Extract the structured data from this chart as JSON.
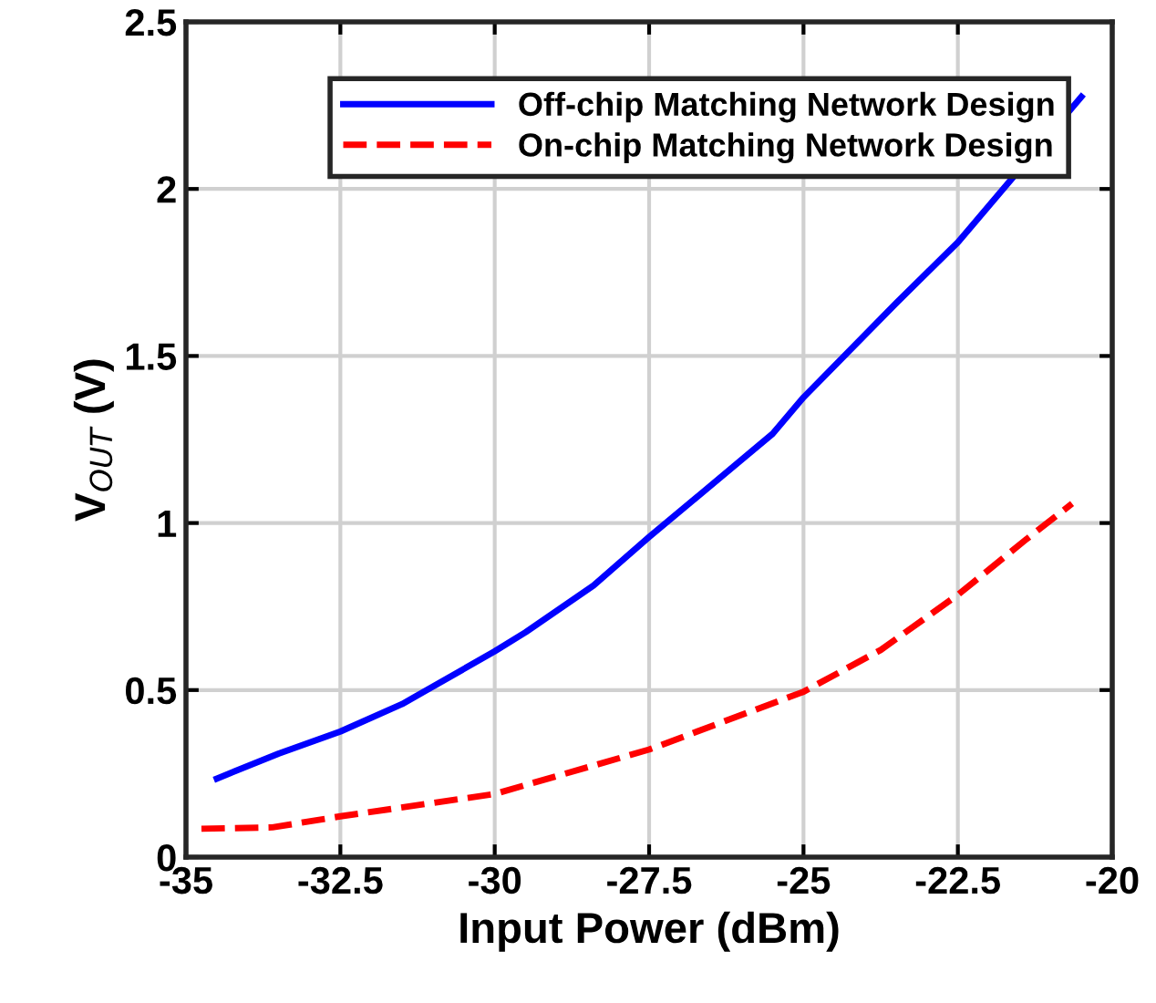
{
  "chart_data": {
    "type": "line",
    "xlabel": "Input Power (dBm)",
    "ylabel": "V$_{OUT}$ (V)",
    "xlim": [
      -35,
      -20
    ],
    "xticks": [
      -35,
      -32.5,
      -30,
      -27.5,
      -25,
      -22.5,
      -20
    ],
    "ylim": [
      0,
      2.5
    ],
    "yticks": [
      0,
      0.5,
      1,
      1.5,
      2,
      2.5
    ],
    "grid": true,
    "legend": "top right",
    "series": [
      {
        "name": "Off-chip Matching Network Design",
        "color": "#0000ff",
        "line_style": "solid",
        "x": [
          -34.5,
          -33.5,
          -32.5,
          -31.5,
          -30,
          -29.5,
          -28.4,
          -27.5,
          -25.5,
          -25,
          -23.5,
          -22.5,
          -20.5
        ],
        "values": [
          0.235,
          0.31,
          0.376,
          0.458,
          0.616,
          0.673,
          0.813,
          0.958,
          1.267,
          1.376,
          1.658,
          1.84,
          2.276
        ]
      },
      {
        "name": "On-chip Matching Network Design",
        "color": "#ff0000",
        "line_style": "dashed",
        "x": [
          -34.75,
          -33.6,
          -32.5,
          -30,
          -27.5,
          -25,
          -23.75,
          -22.5,
          -21.4,
          -20.65
        ],
        "values": [
          0.085,
          0.089,
          0.122,
          0.189,
          0.322,
          0.495,
          0.62,
          0.785,
          0.95,
          1.058
        ]
      }
    ]
  }
}
